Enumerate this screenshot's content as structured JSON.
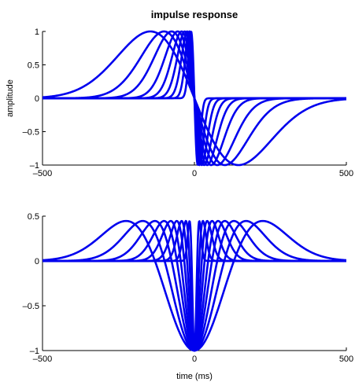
{
  "chart_data": [
    {
      "type": "line",
      "title": "impulse response",
      "xlabel": "",
      "ylabel": "amplitude",
      "xlim": [
        -500,
        500
      ],
      "ylim": [
        -1,
        1
      ],
      "xticks": [
        -500,
        0,
        500
      ],
      "xtick_labels": [
        "–500",
        "0",
        "500"
      ],
      "yticks": [
        -1,
        -0.5,
        0,
        0.5,
        1
      ],
      "ytick_labels": [
        "–1",
        "–0.5",
        "0",
        "0.5",
        "1"
      ],
      "grid": false,
      "color": "#0000ee",
      "family": "first derivative of Gaussian (antisymmetric), 9 widths",
      "series": [
        {
          "peak_x": 145,
          "values_note": "peak +1 at -145, trough -1 at +145"
        },
        {
          "peak_x": 100
        },
        {
          "peak_x": 75
        },
        {
          "peak_x": 55
        },
        {
          "peak_x": 42
        },
        {
          "peak_x": 32
        },
        {
          "peak_x": 24
        },
        {
          "peak_x": 17
        },
        {
          "peak_x": 11
        }
      ]
    },
    {
      "type": "line",
      "title": "",
      "xlabel": "time (ms)",
      "ylabel": "",
      "xlim": [
        -500,
        500
      ],
      "ylim": [
        -1,
        0.5
      ],
      "xticks": [
        -500,
        0,
        500
      ],
      "xtick_labels": [
        "–500",
        "0",
        "500"
      ],
      "yticks": [
        -1,
        -0.5,
        0,
        0.5
      ],
      "ytick_labels": [
        "–1",
        "–0.5",
        "0",
        "0.5"
      ],
      "grid": false,
      "color": "#0000ee",
      "family": "negative second derivative of Gaussian (symmetric), 9 widths",
      "series": [
        {
          "side_peak_x": 225
        },
        {
          "side_peak_x": 170
        },
        {
          "side_peak_x": 130
        },
        {
          "side_peak_x": 100
        },
        {
          "side_peak_x": 78
        },
        {
          "side_peak_x": 58
        },
        {
          "side_peak_x": 42
        },
        {
          "side_peak_x": 28
        },
        {
          "side_peak_x": 16
        }
      ]
    }
  ]
}
